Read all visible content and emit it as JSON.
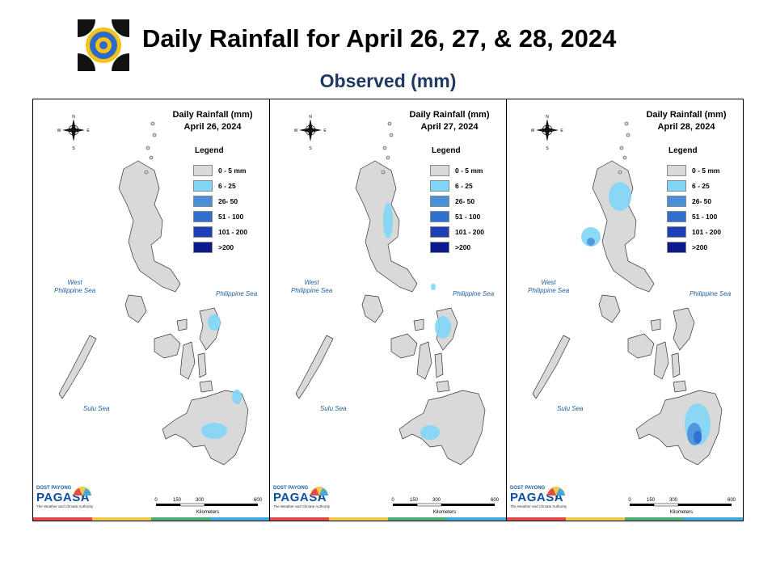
{
  "header": {
    "title": "Daily Rainfall for April 26, 27, & 28, 2024",
    "subtitle": "Observed (mm)"
  },
  "legend": {
    "title": "Legend",
    "items": [
      {
        "label": "0 - 5 mm",
        "color": "#d9d9d9"
      },
      {
        "label": "6 - 25",
        "color": "#7fd6f7"
      },
      {
        "label": "26- 50",
        "color": "#4a90d9"
      },
      {
        "label": "51 - 100",
        "color": "#2e6fd0"
      },
      {
        "label": "101 - 200",
        "color": "#1f3fb5"
      },
      {
        "label": ">200",
        "color": "#0a1a8c"
      }
    ]
  },
  "panels": [
    {
      "heading": "Daily Rainfall (mm)",
      "date": "April 26, 2024"
    },
    {
      "heading": "Daily Rainfall (mm)",
      "date": "April 27, 2024"
    },
    {
      "heading": "Daily Rainfall (mm)",
      "date": "April 28, 2024"
    }
  ],
  "seas": {
    "west": "West\nPhilippine Sea",
    "east": "Philippine Sea",
    "sulu": "Sulu Sea"
  },
  "compass": {
    "n": "N",
    "s": "S",
    "e": "E",
    "w": "W"
  },
  "scale": {
    "ticks": [
      "0",
      "150",
      "300",
      "600"
    ],
    "unit": "Kilometers"
  },
  "brand": {
    "top": "DOST",
    "top2": "PAYONG",
    "name": "PAGASA",
    "tagline": "The Weather and Climate Authority"
  },
  "footer_colors": [
    "#e34a4a",
    "#f2c94c",
    "#4caf7a",
    "#3fa9e0"
  ]
}
